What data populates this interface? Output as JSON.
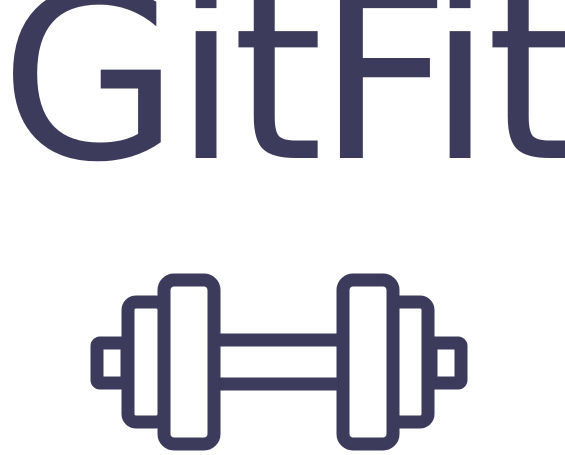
{
  "logo": {
    "wordmark": "GitFit",
    "icon": "dumbbell-icon",
    "color": "#3c3b5c",
    "background": "#ffffff"
  }
}
